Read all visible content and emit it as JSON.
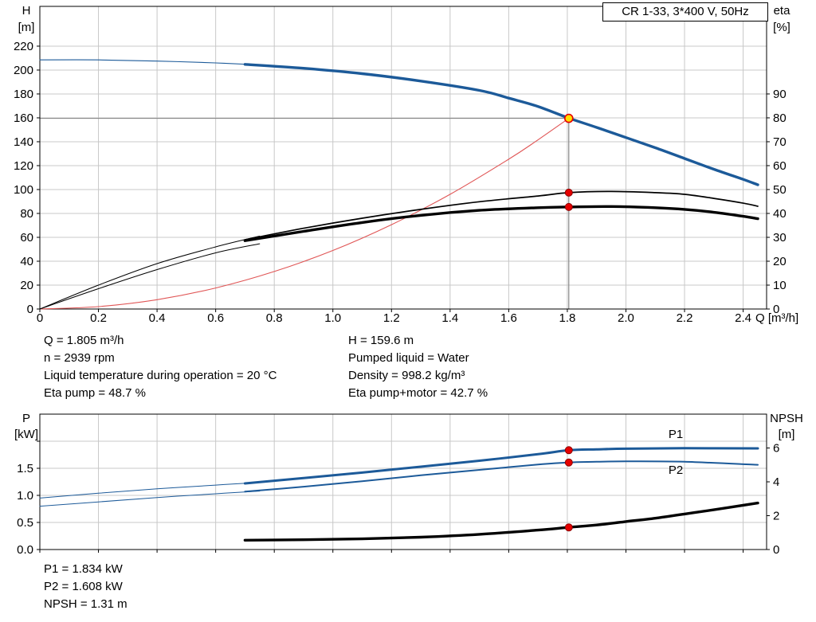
{
  "info_top": {
    "left": [
      "Q = 1.805 m³/h",
      "n = 2939 rpm",
      "Liquid temperature during operation = 20 °C",
      "Eta pump = 48.7 %"
    ],
    "right": [
      "H = 159.6 m",
      "Pumped liquid = Water",
      "Density = 998.2 kg/m³",
      "Eta pump+motor = 42.7 %"
    ]
  },
  "info_bottom": {
    "lines": [
      "P1 = 1.834 kW",
      "P2 = 1.608 kW",
      "NPSH = 1.31 m"
    ]
  },
  "colors": {
    "curve_blue": "#1c5a99",
    "curve_red": "#e05555",
    "grid": "#c8c8c8",
    "crosshair": "#8a8a8a",
    "marker_red": "#e60000",
    "marker_red_dark": "#8c0000",
    "marker_yellow": "#ffdf00"
  },
  "chart_data": [
    {
      "type": "line",
      "title": "CR 1-33, 3*400 V, 50Hz",
      "x_axis": {
        "label": "Q [m³/h]",
        "range": [
          0,
          2.48
        ],
        "ticks": [
          0,
          0.2,
          0.4,
          0.6,
          0.8,
          1.0,
          1.2,
          1.4,
          1.6,
          1.8,
          2.0,
          2.2,
          2.4
        ],
        "tick_labels": [
          "0",
          "0.2",
          "0.4",
          "0.6",
          "0.8",
          "1.0",
          "1.2",
          "1.4",
          "1.6",
          "1.8",
          "2.0",
          "2.2",
          "2.4"
        ]
      },
      "y_left": {
        "label": "H [m]",
        "label_lines": [
          "H",
          "[m]"
        ],
        "range": [
          0,
          253.3
        ],
        "ticks": [
          0,
          20,
          40,
          60,
          80,
          100,
          120,
          140,
          160,
          180,
          200,
          220
        ],
        "tick_labels": [
          "0",
          "20",
          "40",
          "60",
          "80",
          "100",
          "120",
          "140",
          "160",
          "180",
          "200",
          "220"
        ]
      },
      "y_right": {
        "label": "eta [%]",
        "label_lines": [
          "eta",
          "[%]"
        ],
        "range": [
          0,
          126.65
        ],
        "ticks": [
          0,
          10,
          20,
          30,
          40,
          50,
          60,
          70,
          80,
          90
        ],
        "tick_labels": [
          "0",
          "10",
          "20",
          "30",
          "40",
          "50",
          "60",
          "70",
          "80",
          "90"
        ]
      },
      "grid": true,
      "crosshair": {
        "x": 1.805,
        "y": 159.6
      },
      "series": [
        {
          "name": "system-curve",
          "axis": "left",
          "color": "curve_red",
          "width": 1.1,
          "points": [
            [
              0,
              0
            ],
            [
              0.2,
              2
            ],
            [
              0.4,
              7.8
            ],
            [
              0.6,
              17.6
            ],
            [
              0.8,
              31.4
            ],
            [
              1.0,
              49
            ],
            [
              1.2,
              70.6
            ],
            [
              1.4,
              96
            ],
            [
              1.6,
              125.4
            ],
            [
              1.7,
              141.6
            ],
            [
              1.805,
              159.6
            ]
          ]
        },
        {
          "name": "head-curve-extended",
          "axis": "left",
          "color": "curve_blue",
          "width": 1.1,
          "points": [
            [
              0,
              208.5
            ],
            [
              0.2,
              208.5
            ],
            [
              0.4,
              207.5
            ],
            [
              0.6,
              206
            ],
            [
              0.75,
              204.3
            ]
          ]
        },
        {
          "name": "eta-pump-extended",
          "axis": "right",
          "color": "#000000",
          "width": 1,
          "points": [
            [
              0,
              0
            ],
            [
              0.2,
              10
            ],
            [
              0.4,
              19
            ],
            [
              0.6,
              26
            ],
            [
              0.75,
              30.5
            ]
          ]
        },
        {
          "name": "eta-pump-motor-extended",
          "axis": "right",
          "color": "#000000",
          "width": 1,
          "points": [
            [
              0,
              0
            ],
            [
              0.2,
              8.5
            ],
            [
              0.4,
              16.5
            ],
            [
              0.6,
              23.5
            ],
            [
              0.75,
              27.3
            ]
          ]
        },
        {
          "name": "eta-pump",
          "axis": "right",
          "color": "#000000",
          "width": 1.7,
          "points": [
            [
              0.7,
              29
            ],
            [
              0.9,
              33.8
            ],
            [
              1.1,
              38
            ],
            [
              1.3,
              41.7
            ],
            [
              1.5,
              44.9
            ],
            [
              1.7,
              47.3
            ],
            [
              1.805,
              48.7
            ],
            [
              1.95,
              49.2
            ],
            [
              2.1,
              48.7
            ],
            [
              2.2,
              48
            ],
            [
              2.3,
              46.3
            ],
            [
              2.4,
              44.3
            ],
            [
              2.45,
              43
            ]
          ]
        },
        {
          "name": "eta-pump-motor",
          "axis": "right",
          "color": "#000000",
          "width": 3.4,
          "points": [
            [
              0.7,
              28.6
            ],
            [
              0.9,
              32.5
            ],
            [
              1.1,
              36.2
            ],
            [
              1.3,
              39.2
            ],
            [
              1.5,
              41.3
            ],
            [
              1.7,
              42.4
            ],
            [
              1.805,
              42.7
            ],
            [
              1.95,
              42.9
            ],
            [
              2.1,
              42.4
            ],
            [
              2.2,
              41.7
            ],
            [
              2.3,
              40.5
            ],
            [
              2.4,
              38.8
            ],
            [
              2.45,
              37.8
            ]
          ]
        },
        {
          "name": "head-curve",
          "axis": "left",
          "color": "curve_blue",
          "width": 3.4,
          "points": [
            [
              0.7,
              204.8
            ],
            [
              0.9,
              201.5
            ],
            [
              1.1,
              197
            ],
            [
              1.3,
              190.8
            ],
            [
              1.5,
              183
            ],
            [
              1.6,
              176.5
            ],
            [
              1.7,
              169.5
            ],
            [
              1.805,
              159.8
            ],
            [
              1.9,
              152
            ],
            [
              2.0,
              143.5
            ],
            [
              2.1,
              135
            ],
            [
              2.2,
              126
            ],
            [
              2.3,
              117
            ],
            [
              2.4,
              108.5
            ],
            [
              2.45,
              104
            ]
          ]
        }
      ],
      "markers": [
        {
          "name": "duty-point",
          "style": "duty",
          "axis": "left",
          "x": 1.805,
          "y": 159.6
        },
        {
          "name": "eta-pump-point",
          "style": "dot",
          "axis": "right",
          "x": 1.805,
          "y": 48.7
        },
        {
          "name": "eta-pump-motor-point",
          "style": "dot",
          "axis": "right",
          "x": 1.805,
          "y": 42.7
        }
      ]
    },
    {
      "type": "line",
      "title": "",
      "x_axis": {
        "label": "",
        "range": [
          0,
          2.48
        ],
        "ticks": [
          0,
          0.2,
          0.4,
          0.6,
          0.8,
          1.0,
          1.2,
          1.4,
          1.6,
          1.8,
          2.0,
          2.2,
          2.4
        ],
        "tick_labels": []
      },
      "y_left": {
        "label": "P [kW]",
        "label_lines": [
          "P",
          "[kW]"
        ],
        "range": [
          0,
          2.5
        ],
        "ticks": [
          0,
          0.5,
          1.0,
          1.5,
          2.0
        ],
        "tick_labels": [
          "0.0",
          "0.5",
          "1.0",
          "1.5",
          ""
        ]
      },
      "y_right": {
        "label": "NPSH [m]",
        "label_lines": [
          "NPSH",
          "[m]"
        ],
        "range": [
          0,
          8
        ],
        "ticks": [
          0,
          2,
          4,
          6
        ],
        "tick_labels": [
          "0",
          "2",
          "4",
          "6"
        ]
      },
      "grid": true,
      "series": [
        {
          "name": "p1-extended",
          "axis": "left",
          "color": "curve_blue",
          "width": 1,
          "points": [
            [
              0,
              0.95
            ],
            [
              0.2,
              1.04
            ],
            [
              0.4,
              1.12
            ],
            [
              0.6,
              1.19
            ],
            [
              0.75,
              1.24
            ]
          ]
        },
        {
          "name": "p2-extended",
          "axis": "left",
          "color": "curve_blue",
          "width": 1,
          "points": [
            [
              0,
              0.8
            ],
            [
              0.2,
              0.88
            ],
            [
              0.4,
              0.96
            ],
            [
              0.6,
              1.03
            ],
            [
              0.75,
              1.08
            ]
          ]
        },
        {
          "name": "p2",
          "axis": "left",
          "color": "curve_blue",
          "width": 2,
          "points": [
            [
              0.7,
              1.07
            ],
            [
              0.9,
              1.16
            ],
            [
              1.1,
              1.26
            ],
            [
              1.3,
              1.37
            ],
            [
              1.5,
              1.47
            ],
            [
              1.7,
              1.57
            ],
            [
              1.805,
              1.608
            ],
            [
              1.9,
              1.62
            ],
            [
              2.0,
              1.628
            ],
            [
              2.2,
              1.62
            ],
            [
              2.45,
              1.565
            ]
          ]
        },
        {
          "name": "p1",
          "axis": "left",
          "color": "curve_blue",
          "width": 3,
          "points": [
            [
              0.7,
              1.22
            ],
            [
              0.9,
              1.32
            ],
            [
              1.1,
              1.42
            ],
            [
              1.3,
              1.53
            ],
            [
              1.5,
              1.64
            ],
            [
              1.7,
              1.76
            ],
            [
              1.805,
              1.834
            ],
            [
              1.9,
              1.85
            ],
            [
              2.0,
              1.862
            ],
            [
              2.2,
              1.87
            ],
            [
              2.45,
              1.868
            ]
          ]
        },
        {
          "name": "npsh",
          "axis": "right",
          "color": "#000000",
          "width": 3.4,
          "points": [
            [
              0.7,
              0.55
            ],
            [
              0.9,
              0.58
            ],
            [
              1.1,
              0.63
            ],
            [
              1.3,
              0.73
            ],
            [
              1.5,
              0.9
            ],
            [
              1.7,
              1.15
            ],
            [
              1.805,
              1.31
            ],
            [
              1.9,
              1.45
            ],
            [
              2.0,
              1.65
            ],
            [
              2.1,
              1.85
            ],
            [
              2.2,
              2.1
            ],
            [
              2.3,
              2.35
            ],
            [
              2.45,
              2.75
            ]
          ]
        }
      ],
      "markers": [
        {
          "name": "p1-point",
          "style": "dot",
          "axis": "left",
          "x": 1.805,
          "y": 1.834
        },
        {
          "name": "p2-point",
          "style": "dot",
          "axis": "left",
          "x": 1.805,
          "y": 1.608
        },
        {
          "name": "npsh-point",
          "style": "dot",
          "axis": "right",
          "x": 1.805,
          "y": 1.31
        }
      ],
      "annotations": [
        {
          "text": "P1",
          "x": 2.17,
          "y": 2.06,
          "axis": "left",
          "color": "curve_blue"
        },
        {
          "text": "P2",
          "x": 2.17,
          "y": 1.4,
          "axis": "left",
          "color": "curve_blue"
        }
      ]
    }
  ]
}
